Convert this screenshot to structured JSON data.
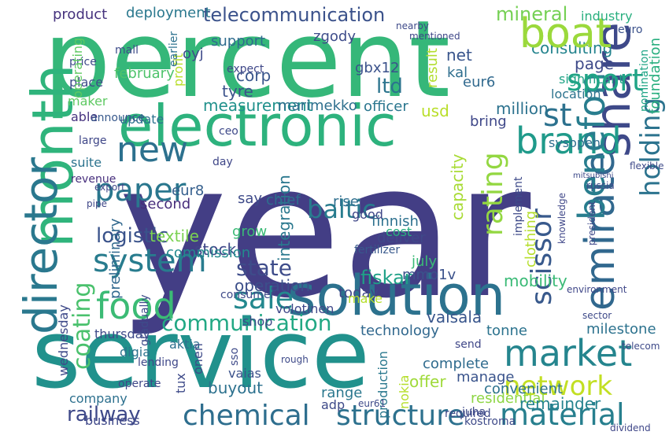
{
  "cloud": {
    "words": [
      {
        "text": "year",
        "color": "#433e85"
      },
      {
        "text": "percent",
        "color": "#35b779"
      },
      {
        "text": "service",
        "color": "#21918c"
      },
      {
        "text": "electronic",
        "color": "#2db27d"
      },
      {
        "text": "solution",
        "color": "#2c728e"
      },
      {
        "text": "month",
        "color": "#2fb47c"
      },
      {
        "text": "boat",
        "color": "#9bd93c"
      },
      {
        "text": "director",
        "color": "#2a788e"
      },
      {
        "text": "emirate",
        "color": "#31688e"
      },
      {
        "text": "share",
        "color": "#3e4989"
      },
      {
        "text": "sale",
        "color": "#23888e"
      },
      {
        "text": "brand",
        "color": "#1f9a8a"
      },
      {
        "text": "food",
        "color": "#3bbb75"
      },
      {
        "text": "paper",
        "color": "#2a778e"
      },
      {
        "text": "system",
        "color": "#287c8e"
      },
      {
        "text": "new",
        "color": "#2d718e"
      },
      {
        "text": "market",
        "color": "#25858e"
      },
      {
        "text": "network",
        "color": "#c2df23"
      },
      {
        "text": "material",
        "color": "#277f8e"
      },
      {
        "text": "structure",
        "color": "#2d718e"
      },
      {
        "text": "chemical",
        "color": "#2e6e8e"
      },
      {
        "text": "communication",
        "color": "#22a884"
      },
      {
        "text": "benefon",
        "color": "#287d8e"
      },
      {
        "text": "holding",
        "color": "#2c738e"
      },
      {
        "text": "scissor",
        "color": "#38598c"
      },
      {
        "text": "sport",
        "color": "#20a486"
      },
      {
        "text": "st",
        "color": "#2c718e"
      },
      {
        "text": "rating",
        "color": "#93d741"
      },
      {
        "text": "coating",
        "color": "#4ac16d"
      },
      {
        "text": "railway",
        "color": "#3e4989"
      },
      {
        "text": "telecommunication",
        "color": "#3b528b"
      },
      {
        "text": "mineral",
        "color": "#75d054"
      },
      {
        "text": "ltd",
        "color": "#2b748e"
      },
      {
        "text": "baltic",
        "color": "#287c8e"
      },
      {
        "text": "state",
        "color": "#3e4c8a"
      },
      {
        "text": "logistic",
        "color": "#3a538b"
      },
      {
        "text": "fiskar",
        "color": "#1fa187"
      },
      {
        "text": "textile",
        "color": "#7ad151"
      },
      {
        "text": "stock",
        "color": "#3f4788"
      },
      {
        "text": "tyre",
        "color": "#3b528b"
      },
      {
        "text": "page",
        "color": "#3e4a89"
      },
      {
        "text": "million",
        "color": "#2c728e"
      },
      {
        "text": "operation",
        "color": "#3c4f8a"
      },
      {
        "text": "consulting",
        "color": "#25848e"
      },
      {
        "text": "corp",
        "color": "#39568c"
      },
      {
        "text": "gbx12",
        "color": "#3b528b"
      },
      {
        "text": "measurement",
        "color": "#21918c"
      },
      {
        "text": "marimekko",
        "color": "#2e6f8e"
      },
      {
        "text": "officer",
        "color": "#2a768e"
      },
      {
        "text": "eur6",
        "color": "#30698e"
      },
      {
        "text": "deployment",
        "color": "#2a788e"
      },
      {
        "text": "product",
        "color": "#46337e"
      },
      {
        "text": "boat",
        "color": "#9bd93c"
      },
      {
        "text": "zgody",
        "color": "#3e4c8a"
      },
      {
        "text": "capacity",
        "color": "#a8db34"
      },
      {
        "text": "integration",
        "color": "#2a788e"
      },
      {
        "text": "clothing",
        "color": "#b5de2b"
      },
      {
        "text": "foundation",
        "color": "#29af7f"
      },
      {
        "text": "mobility",
        "color": "#3aba76"
      },
      {
        "text": "milestone",
        "color": "#2c728e"
      },
      {
        "text": "mmo1v",
        "color": "#3b528b"
      },
      {
        "text": "tonne",
        "color": "#2c738e"
      },
      {
        "text": "technology",
        "color": "#31688e"
      },
      {
        "text": "vaisala",
        "color": "#39568c"
      },
      {
        "text": "today",
        "color": "#3f4788"
      },
      {
        "text": "deliver",
        "color": "#3f4889"
      },
      {
        "text": "finnish",
        "color": "#2d708e"
      },
      {
        "text": "rise",
        "color": "#2e6e8e"
      },
      {
        "text": "chief",
        "color": "#2e6f8e"
      },
      {
        "text": "preliminary",
        "color": "#31688e"
      },
      {
        "text": "commission",
        "color": "#23898e"
      },
      {
        "text": "grow",
        "color": "#3aba76"
      },
      {
        "text": "second",
        "color": "#472d7b"
      },
      {
        "text": "eur8",
        "color": "#355f8d"
      },
      {
        "text": "say",
        "color": "#3e4a89"
      },
      {
        "text": "oyj",
        "color": "#3e4a89"
      },
      {
        "text": "support",
        "color": "#2f6c8e"
      },
      {
        "text": "february",
        "color": "#4ec36b"
      },
      {
        "text": "update",
        "color": "#2c728e"
      },
      {
        "text": "maker",
        "color": "#5ec962"
      },
      {
        "text": "able",
        "color": "#46337f"
      },
      {
        "text": "announce",
        "color": "#38598c"
      },
      {
        "text": "suite",
        "color": "#2c738e"
      },
      {
        "text": "revenue",
        "color": "#472f7d"
      },
      {
        "text": "wednesday",
        "color": "#3e4989"
      },
      {
        "text": "thursday",
        "color": "#3e4a89"
      },
      {
        "text": "company",
        "color": "#2d708e"
      },
      {
        "text": "business",
        "color": "#3f4889"
      },
      {
        "text": "digia",
        "color": "#2c738e"
      },
      {
        "text": "aktia",
        "color": "#2d708e"
      },
      {
        "text": "buyout",
        "color": "#2c718e"
      },
      {
        "text": "vaias",
        "color": "#3b528b"
      },
      {
        "text": "range",
        "color": "#2a778e"
      },
      {
        "text": "complete",
        "color": "#2f6b8e"
      },
      {
        "text": "manage",
        "color": "#3a548c"
      },
      {
        "text": "residential",
        "color": "#8ed645"
      },
      {
        "text": "offer",
        "color": "#9fda3a"
      },
      {
        "text": "production",
        "color": "#2a788e"
      },
      {
        "text": "convenient",
        "color": "#2c728e"
      },
      {
        "text": "remainder",
        "color": "#25838e"
      },
      {
        "text": "adp",
        "color": "#3e4a89"
      },
      {
        "text": "make",
        "color": "#b5de2b"
      },
      {
        "text": "shop",
        "color": "#3e4c8a"
      },
      {
        "text": "volotinen",
        "color": "#3f4889"
      },
      {
        "text": "consumer",
        "color": "#3e4a89"
      },
      {
        "text": "fertilizer",
        "color": "#38598c"
      },
      {
        "text": "good",
        "color": "#3f4788"
      },
      {
        "text": "july",
        "color": "#3aba76"
      },
      {
        "text": "cost",
        "color": "#29af7f"
      },
      {
        "text": "bring",
        "color": "#3f4889"
      },
      {
        "text": "sysopen",
        "color": "#2e6e8e"
      },
      {
        "text": "location",
        "color": "#2c738e"
      },
      {
        "text": "significant",
        "color": "#20a486"
      },
      {
        "text": "net",
        "color": "#39558c"
      },
      {
        "text": "kal",
        "color": "#2e6e8e"
      },
      {
        "text": "result",
        "color": "#b2dd2d"
      },
      {
        "text": "euro",
        "color": "#3b528b"
      },
      {
        "text": "industry",
        "color": "#29af7f"
      },
      {
        "text": "ceo",
        "color": "#3e4989"
      },
      {
        "text": "expect",
        "color": "#3f4788"
      },
      {
        "text": "place",
        "color": "#3e4c8a"
      },
      {
        "text": "price",
        "color": "#3e4a89"
      },
      {
        "text": "large",
        "color": "#3f4788"
      },
      {
        "text": "day",
        "color": "#3f4788"
      },
      {
        "text": "mall",
        "color": "#3e4c8a"
      },
      {
        "text": "usd",
        "color": "#b8de29"
      },
      {
        "text": "tux",
        "color": "#3e4a89"
      },
      {
        "text": "onen",
        "color": "#3e4a89"
      },
      {
        "text": "sso",
        "color": "#3e4a89"
      },
      {
        "text": "rough",
        "color": "#3e4a89"
      },
      {
        "text": "juha",
        "color": "#3e4a89"
      },
      {
        "text": "nokia",
        "color": "#b5de2b"
      },
      {
        "text": "required",
        "color": "#3e4a89"
      },
      {
        "text": "eur61",
        "color": "#3e4a89"
      },
      {
        "text": "gradually",
        "color": "#3e4c8a"
      },
      {
        "text": "operating",
        "color": "#5ec962"
      },
      {
        "text": "profit",
        "color": "#b8de29"
      },
      {
        "text": "earlier",
        "color": "#2c718e"
      },
      {
        "text": "implement",
        "color": "#3e4a89"
      },
      {
        "text": "nomination",
        "color": "#20a486"
      },
      {
        "text": "send",
        "color": "#3f4788"
      },
      {
        "text": "nearby",
        "color": "#3e4a89"
      },
      {
        "text": "mentioned",
        "color": "#3f4788"
      },
      {
        "text": "operate",
        "color": "#3f4788"
      },
      {
        "text": "lending",
        "color": "#3f4889"
      },
      {
        "text": "kostroma",
        "color": "#3e4a89"
      },
      {
        "text": "dividend",
        "color": "#3f4788"
      },
      {
        "text": "sector",
        "color": "#3e4a89"
      },
      {
        "text": "environment",
        "color": "#3f4788"
      },
      {
        "text": "flexible",
        "color": "#3e4a89"
      },
      {
        "text": "mitsubishi",
        "color": "#3e4a89"
      },
      {
        "text": "russia",
        "color": "#3e4a89"
      },
      {
        "text": "knowledge",
        "color": "#3f4788"
      },
      {
        "text": "president",
        "color": "#3f4889"
      },
      {
        "text": "telecom",
        "color": "#3e4a89"
      },
      {
        "text": "export",
        "color": "#3f4788"
      },
      {
        "text": "pipe",
        "color": "#3f4788"
      }
    ]
  }
}
